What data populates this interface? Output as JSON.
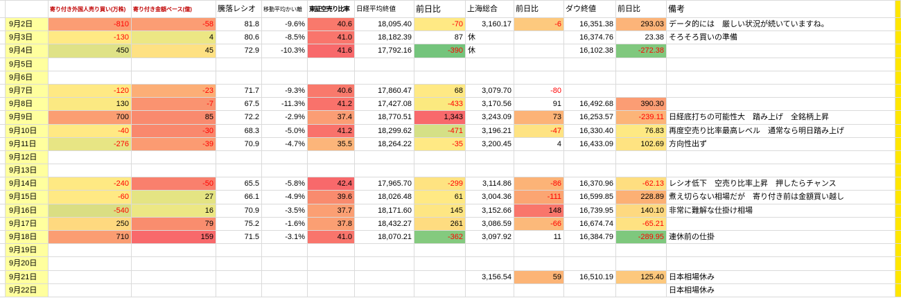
{
  "palette": {
    "date_bg": "#ffff9e",
    "strip": "#ffe600",
    "negative_text": "#ff0000",
    "grid": "#dadada",
    "header_red": "#c00000"
  },
  "header": {
    "labels": [
      "",
      "",
      "寄り付き外国人売り買い(万株)",
      "寄り付き金額ベース(億)",
      "騰落レシオ",
      "移動平均かい離",
      "東証空売り比率",
      "日経平均終値",
      "前日比",
      "上海総合",
      "前日比",
      "ダウ終値",
      "前日比",
      "備考",
      ""
    ],
    "names": [
      "margin",
      "date",
      "foreign-open-trading",
      "open-amount-base",
      "updown-ratio",
      "ma-deviation",
      "short-sell-ratio",
      "nikkei-close",
      "nikkei-change",
      "shanghai-composite",
      "shanghai-change",
      "dow-close",
      "dow-change",
      "remarks",
      "strip"
    ]
  },
  "rows": [
    {
      "date": "9月2日",
      "cells": [
        {
          "v": "-810",
          "bg": "#fb9d74",
          "r": 1
        },
        {
          "v": "-58",
          "bg": "#fb9d74",
          "r": 1
        },
        {
          "v": "81.8"
        },
        {
          "v": "-9.6%"
        },
        {
          "v": "40.6",
          "bg": "#f9796c"
        },
        {
          "v": "18,095.40"
        },
        {
          "v": "-70",
          "bg": "#ffe984",
          "r": 1
        },
        {
          "v": "3,160.17"
        },
        {
          "v": "-6",
          "bg": "#fdc97e",
          "r": 1
        },
        {
          "v": "16,351.38"
        },
        {
          "v": "293.03",
          "bg": "#fcb479"
        },
        {
          "v": "データ的には　厳しい状況が続いていますね。",
          "al": "l"
        }
      ]
    },
    {
      "date": "9月3日",
      "cells": [
        {
          "v": "-130",
          "bg": "#ffe984",
          "r": 1
        },
        {
          "v": "4",
          "bg": "#ece784"
        },
        {
          "v": "80.6"
        },
        {
          "v": "-8.5%"
        },
        {
          "v": "41.0",
          "bg": "#f9756c"
        },
        {
          "v": "18,182.39"
        },
        {
          "v": "87"
        },
        {
          "v": "休",
          "al": "l"
        },
        null,
        {
          "v": "16,374.76"
        },
        {
          "v": "23.38"
        },
        {
          "v": "そろそろ買いの準備",
          "al": "l"
        }
      ]
    },
    {
      "date": "9月4日",
      "cells": [
        {
          "v": "450",
          "bg": "#dfe287"
        },
        {
          "v": "45",
          "bg": "#fee183"
        },
        {
          "v": "72.9"
        },
        {
          "v": "-10.3%"
        },
        {
          "v": "41.6",
          "bg": "#f8696b"
        },
        {
          "v": "17,792.16"
        },
        {
          "v": "-390",
          "bg": "#74c47c",
          "r": 1
        },
        {
          "v": "休",
          "al": "l"
        },
        null,
        {
          "v": "16,102.38"
        },
        {
          "v": "-272.38",
          "bg": "#80c87e",
          "r": 1
        },
        null
      ]
    },
    {
      "date": "9月5日",
      "cells": [
        null,
        null,
        null,
        null,
        null,
        null,
        null,
        null,
        null,
        null,
        null,
        null
      ]
    },
    {
      "date": "9月6日",
      "cells": [
        null,
        null,
        null,
        null,
        null,
        null,
        null,
        null,
        null,
        null,
        null,
        null
      ]
    },
    {
      "date": "9月7日",
      "cells": [
        {
          "v": "-120",
          "bg": "#ffe984",
          "r": 1
        },
        {
          "v": "-23",
          "bg": "#fcae76",
          "r": 1
        },
        {
          "v": "71.7"
        },
        {
          "v": "-9.3%"
        },
        {
          "v": "40.6",
          "bg": "#f9796c"
        },
        {
          "v": "17,860.47"
        },
        {
          "v": "68",
          "bg": "#ffe984"
        },
        {
          "v": "3,079.70"
        },
        {
          "v": "-80",
          "r": 1
        },
        null,
        null,
        null
      ]
    },
    {
      "date": "9月8日",
      "cells": [
        {
          "v": "130",
          "bg": "#fbe982"
        },
        {
          "v": "-7",
          "bg": "#fa9370",
          "r": 1
        },
        {
          "v": "67.5"
        },
        {
          "v": "-11.3%"
        },
        {
          "v": "41.2",
          "bg": "#f9726b"
        },
        {
          "v": "17,427.08"
        },
        {
          "v": "-433",
          "bg": "#fbe97f",
          "r": 1
        },
        {
          "v": "3,170.56"
        },
        {
          "v": "91"
        },
        {
          "v": "16,492.68"
        },
        {
          "v": "390.30",
          "bg": "#fb9d74"
        },
        null
      ]
    },
    {
      "date": "9月9日",
      "cells": [
        {
          "v": "700",
          "bg": "#fb9e72"
        },
        {
          "v": "85",
          "bg": "#f98a6e"
        },
        {
          "v": "72.2"
        },
        {
          "v": "-2.9%"
        },
        {
          "v": "37.4",
          "bg": "#fb9d74"
        },
        {
          "v": "18,770.51"
        },
        {
          "v": "1,343",
          "bg": "#f8696b"
        },
        {
          "v": "3,243.09"
        },
        {
          "v": "73",
          "bg": "#fcb377"
        },
        {
          "v": "16,253.57"
        },
        {
          "v": "-239.11",
          "bg": "#fcb478",
          "r": 1
        },
        {
          "v": "日経底打ちの可能性大　踏み上げ　全銘柄上昇",
          "al": "l"
        }
      ]
    },
    {
      "date": "9月10日",
      "cells": [
        {
          "v": "-40",
          "bg": "#ffe984",
          "r": 1
        },
        {
          "v": "-30",
          "bg": "#f9886d",
          "r": 1
        },
        {
          "v": "68.3"
        },
        {
          "v": "-5.0%"
        },
        {
          "v": "41.2",
          "bg": "#f9726b"
        },
        {
          "v": "18,299.62"
        },
        {
          "v": "-471",
          "bg": "#d5e086",
          "r": 1
        },
        {
          "v": "3,196.21"
        },
        {
          "v": "-47",
          "bg": "#fee383",
          "r": 1
        },
        {
          "v": "16,330.40"
        },
        {
          "v": "76.83",
          "bg": "#fee983"
        },
        {
          "v": "再度空売り比率最高レベル　通常なら明日踏み上げ",
          "al": "l"
        }
      ]
    },
    {
      "date": "9月11日",
      "cells": [
        {
          "v": "-276",
          "bg": "#e7e584",
          "r": 1
        },
        {
          "v": "-39",
          "bg": "#fb9b72",
          "r": 1
        },
        {
          "v": "70.9"
        },
        {
          "v": "-4.7%"
        },
        {
          "v": "35.5",
          "bg": "#fcb57a"
        },
        {
          "v": "18,264.22"
        },
        {
          "v": "-35",
          "bg": "#ffe984",
          "r": 1
        },
        {
          "v": "3,200.45"
        },
        {
          "v": "4"
        },
        {
          "v": "16,433.09"
        },
        {
          "v": "102.69",
          "bg": "#fee381"
        },
        {
          "v": "方向性出ず",
          "al": "l"
        }
      ]
    },
    {
      "date": "9月12日",
      "cells": [
        null,
        null,
        null,
        null,
        null,
        null,
        null,
        null,
        null,
        null,
        null,
        null
      ]
    },
    {
      "date": "9月13日",
      "cells": [
        null,
        null,
        null,
        null,
        null,
        null,
        null,
        null,
        null,
        null,
        null,
        null
      ]
    },
    {
      "date": "9月14日",
      "cells": [
        {
          "v": "-240",
          "bg": "#fee983",
          "r": 1
        },
        {
          "v": "-50",
          "bg": "#f9806d",
          "r": 1
        },
        {
          "v": "65.5"
        },
        {
          "v": "-5.8%"
        },
        {
          "v": "42.4",
          "bg": "#f8696b"
        },
        {
          "v": "17,965.70"
        },
        {
          "v": "-299",
          "bg": "#fee381",
          "r": 1
        },
        {
          "v": "3,114.86"
        },
        {
          "v": "-86",
          "bg": "#fcb377",
          "r": 1
        },
        {
          "v": "16,370.96"
        },
        {
          "v": "-62.13",
          "bg": "#fede80",
          "r": 1
        },
        {
          "v": "レシオ低下　空売り比率上昇　押したらチャンス",
          "al": "l"
        }
      ]
    },
    {
      "date": "9月15日",
      "cells": [
        {
          "v": "-60",
          "bg": "#ffe984",
          "r": 1
        },
        {
          "v": "27",
          "bg": "#e4e483"
        },
        {
          "v": "66.1"
        },
        {
          "v": "-4.9%"
        },
        {
          "v": "39.6",
          "bg": "#f98b6e"
        },
        {
          "v": "18,026.48"
        },
        {
          "v": "61",
          "bg": "#ffe984"
        },
        {
          "v": "3,004.36"
        },
        {
          "v": "-111",
          "bg": "#fba572",
          "r": 1
        },
        {
          "v": "16,599.85"
        },
        {
          "v": "228.89",
          "bg": "#fcb074"
        },
        {
          "v": "煮え切らない相場だが　寄り付き前は金額買い越し",
          "al": "l"
        }
      ]
    },
    {
      "date": "9月16日",
      "cells": [
        {
          "v": "-540",
          "bg": "#dade83",
          "r": 1
        },
        {
          "v": "16",
          "bg": "#ece784"
        },
        {
          "v": "70.9"
        },
        {
          "v": "-3.5%"
        },
        {
          "v": "37.7",
          "bg": "#fb9f73"
        },
        {
          "v": "18,171.60"
        },
        {
          "v": "145",
          "bg": "#fee683"
        },
        {
          "v": "3,152.66"
        },
        {
          "v": "148",
          "bg": "#f9766b"
        },
        {
          "v": "16,739.95"
        },
        {
          "v": "140.10",
          "bg": "#fed980"
        },
        {
          "v": "非常に難解な仕掛け相場",
          "al": "l"
        }
      ]
    },
    {
      "date": "9月17日",
      "cells": [
        {
          "v": "250",
          "bg": "#fed97f"
        },
        {
          "v": "79",
          "bg": "#f98d6e"
        },
        {
          "v": "75.2"
        },
        {
          "v": "-1.6%"
        },
        {
          "v": "37.8",
          "bg": "#fb9f73"
        },
        {
          "v": "18,432.27"
        },
        {
          "v": "261",
          "bg": "#fedc80"
        },
        {
          "v": "3,086.59"
        },
        {
          "v": "-66",
          "bg": "#fcb97a",
          "r": 1
        },
        {
          "v": "16,674.74"
        },
        {
          "v": "-65.21",
          "bg": "#fee282",
          "r": 1
        },
        null
      ]
    },
    {
      "date": "9月18日",
      "cells": [
        {
          "v": "710",
          "bg": "#fb9d72"
        },
        {
          "v": "159",
          "bg": "#f8696b"
        },
        {
          "v": "71.5"
        },
        {
          "v": "-3.1%"
        },
        {
          "v": "41.0",
          "bg": "#f9756c"
        },
        {
          "v": "18,070.21"
        },
        {
          "v": "-362",
          "bg": "#84ca7e",
          "r": 1
        },
        {
          "v": "3,097.92"
        },
        {
          "v": "11"
        },
        {
          "v": "16,384.79"
        },
        {
          "v": "-289.95",
          "bg": "#7ec87d",
          "r": 1
        },
        {
          "v": "連休前の仕掛",
          "al": "l"
        }
      ]
    },
    {
      "date": "9月19日",
      "cells": [
        null,
        null,
        null,
        null,
        null,
        null,
        null,
        null,
        null,
        null,
        null,
        null
      ]
    },
    {
      "date": "9月20日",
      "cells": [
        null,
        null,
        null,
        null,
        null,
        null,
        null,
        null,
        null,
        null,
        null,
        null
      ]
    },
    {
      "date": "9月21日",
      "cells": [
        null,
        null,
        null,
        null,
        null,
        null,
        null,
        {
          "v": "3,156.54"
        },
        {
          "v": "59",
          "bg": "#fcb476"
        },
        {
          "v": "16,510.19"
        },
        {
          "v": "125.40",
          "bg": "#fdc87d"
        },
        {
          "v": "日本相場休み",
          "al": "l"
        }
      ]
    },
    {
      "date": "9月22日",
      "cells": [
        null,
        null,
        null,
        null,
        null,
        null,
        null,
        null,
        null,
        null,
        null,
        {
          "v": "日本相場休み",
          "al": "l"
        }
      ]
    }
  ]
}
